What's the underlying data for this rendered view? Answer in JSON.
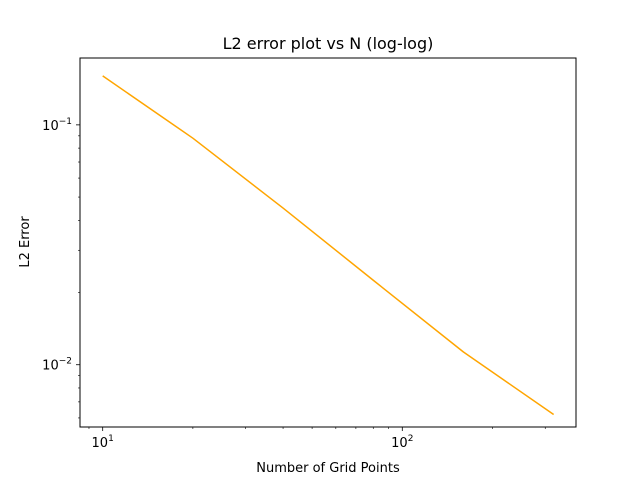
{
  "chart_data": {
    "type": "line",
    "title": "L2 error plot vs N (log-log)",
    "xlabel": "Number of Grid Points",
    "ylabel": "L2 Error",
    "xscale": "log",
    "yscale": "log",
    "xlim": [
      8.4,
      380
    ],
    "ylim": [
      0.0055,
      0.19
    ],
    "grid": false,
    "legend": "none",
    "x_ticks": [
      {
        "value": 10,
        "base": "10",
        "exp": "1"
      },
      {
        "value": 100,
        "base": "10",
        "exp": "2"
      }
    ],
    "y_ticks": [
      {
        "value": 0.01,
        "base": "10",
        "exp": "−2"
      },
      {
        "value": 0.1,
        "base": "10",
        "exp": "−1"
      }
    ],
    "series": [
      {
        "color": "#ffa500",
        "x": [
          10,
          20,
          40,
          80,
          160,
          320
        ],
        "y": [
          0.16,
          0.088,
          0.045,
          0.0225,
          0.0113,
          0.0062
        ]
      }
    ]
  }
}
